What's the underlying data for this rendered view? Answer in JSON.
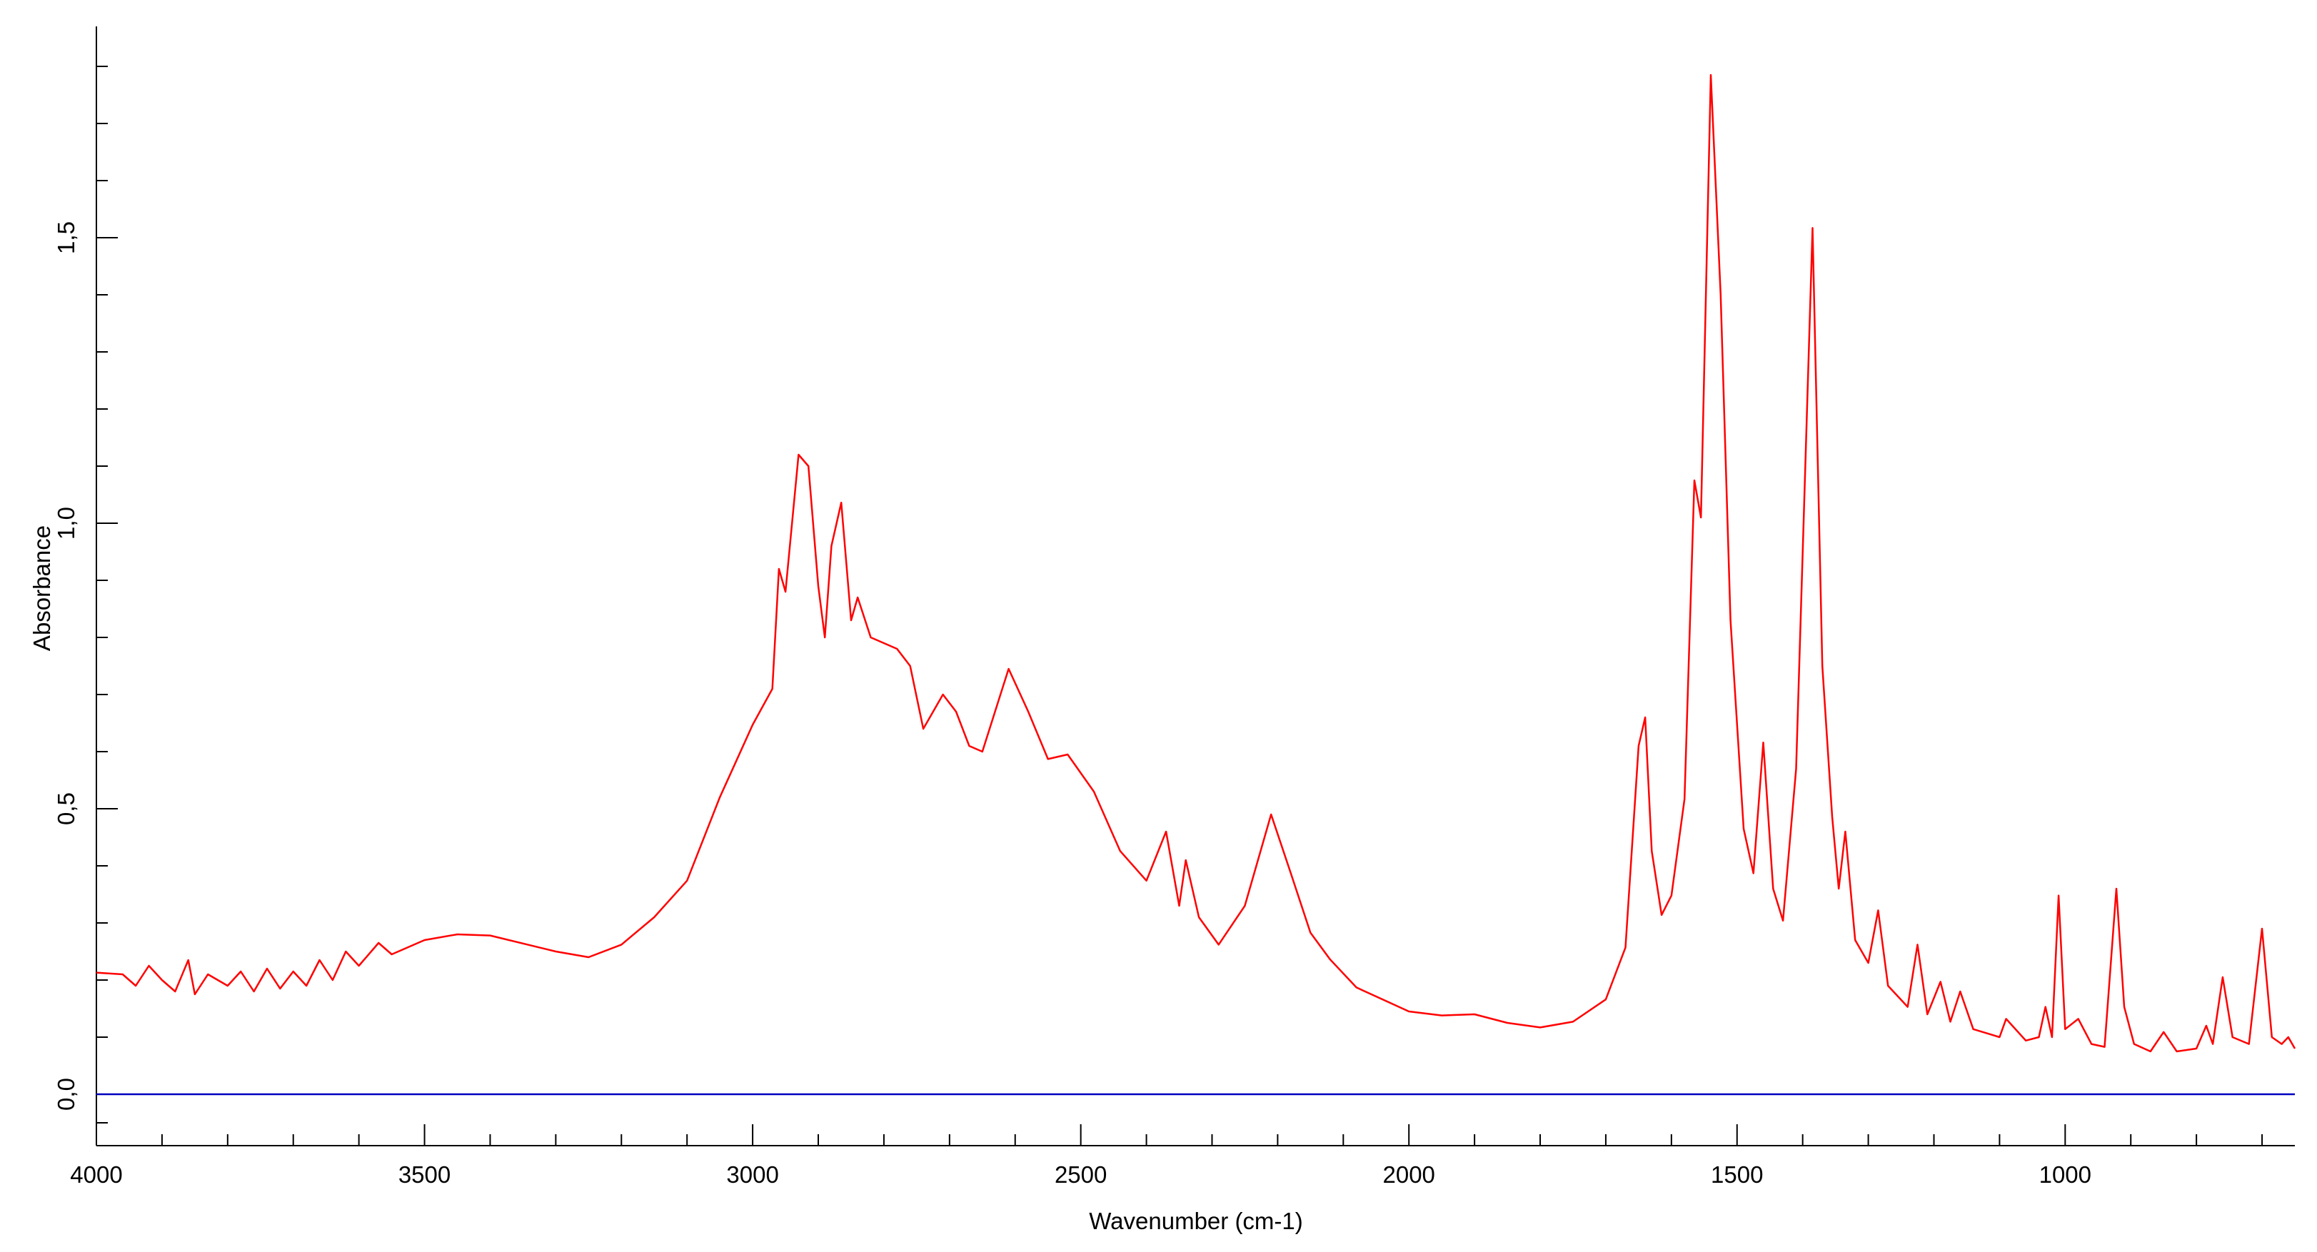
{
  "chart_data": {
    "type": "line",
    "xlabel": "Wavenumber (cm-1)",
    "ylabel": "Absorbance",
    "xlim": [
      4000,
      650
    ],
    "ylim": [
      -0.09,
      1.87
    ],
    "xticks": [
      4000,
      3500,
      3000,
      2500,
      2000,
      1500,
      1000
    ],
    "xminorticks": [
      3900,
      3800,
      3700,
      3600,
      3400,
      3300,
      3200,
      3100,
      2900,
      2800,
      2700,
      2600,
      2400,
      2300,
      2200,
      2100,
      1900,
      1800,
      1700,
      1600,
      1400,
      1300,
      1200,
      1100,
      900,
      800,
      700
    ],
    "yticks": [
      {
        "value": 0,
        "label": "0,0"
      },
      {
        "value": 0.5,
        "label": "0,5"
      },
      {
        "value": 1.0,
        "label": "1,0"
      },
      {
        "value": 1.5,
        "label": "1,5"
      }
    ],
    "yminorticks": [
      -0.05,
      0.1,
      0.2,
      0.3,
      0.4,
      0.6,
      0.7,
      0.8,
      0.9,
      1.1,
      1.2,
      1.3,
      1.4,
      1.6,
      1.7,
      1.8
    ],
    "series": [
      {
        "color": "#ff0000",
        "x": [
          4000,
          3960,
          3940,
          3920,
          3900,
          3880,
          3860,
          3850,
          3830,
          3800,
          3780,
          3760,
          3740,
          3720,
          3700,
          3680,
          3660,
          3640,
          3620,
          3600,
          3570,
          3550,
          3500,
          3450,
          3400,
          3300,
          3250,
          3200,
          3150,
          3100,
          3050,
          3000,
          2970,
          2960,
          2950,
          2930,
          2915,
          2900,
          2890,
          2880,
          2865,
          2850,
          2840,
          2820,
          2780,
          2760,
          2740,
          2710,
          2690,
          2670,
          2650,
          2610,
          2580,
          2550,
          2520,
          2480,
          2440,
          2400,
          2370,
          2350,
          2340,
          2320,
          2290,
          2250,
          2210,
          2180,
          2150,
          2120,
          2080,
          2000,
          1950,
          1900,
          1850,
          1800,
          1750,
          1700,
          1670,
          1650,
          1640,
          1630,
          1615,
          1600,
          1580,
          1565,
          1555,
          1540,
          1525,
          1510,
          1490,
          1475,
          1460,
          1445,
          1430,
          1410,
          1385,
          1370,
          1355,
          1345,
          1335,
          1320,
          1300,
          1285,
          1270,
          1240,
          1225,
          1210,
          1190,
          1175,
          1160,
          1140,
          1100,
          1090,
          1060,
          1040,
          1030,
          1020,
          1010,
          1000,
          980,
          960,
          940,
          922,
          910,
          895,
          870,
          850,
          830,
          800,
          785,
          775,
          760,
          745,
          720,
          700,
          685,
          670,
          660,
          650
        ],
        "values": [
          0.213,
          0.21,
          0.19,
          0.225,
          0.2,
          0.18,
          0.235,
          0.175,
          0.21,
          0.19,
          0.215,
          0.18,
          0.22,
          0.185,
          0.215,
          0.19,
          0.235,
          0.2,
          0.25,
          0.225,
          0.265,
          0.245,
          0.27,
          0.28,
          0.278,
          0.25,
          0.24,
          0.262,
          0.31,
          0.374,
          0.52,
          0.647,
          0.71,
          0.92,
          0.88,
          1.12,
          1.1,
          0.89,
          0.8,
          0.96,
          1.036,
          0.83,
          0.87,
          0.8,
          0.78,
          0.75,
          0.64,
          0.7,
          0.67,
          0.61,
          0.6,
          0.745,
          0.67,
          0.587,
          0.595,
          0.53,
          0.426,
          0.374,
          0.46,
          0.33,
          0.41,
          0.31,
          0.262,
          0.33,
          0.49,
          0.387,
          0.283,
          0.236,
          0.187,
          0.145,
          0.138,
          0.14,
          0.125,
          0.117,
          0.127,
          0.166,
          0.257,
          0.61,
          0.66,
          0.426,
          0.314,
          0.348,
          0.517,
          1.075,
          1.01,
          1.785,
          1.4,
          0.83,
          0.465,
          0.387,
          0.616,
          0.36,
          0.304,
          0.57,
          1.517,
          0.75,
          0.486,
          0.36,
          0.46,
          0.27,
          0.23,
          0.322,
          0.19,
          0.153,
          0.262,
          0.14,
          0.197,
          0.127,
          0.18,
          0.114,
          0.1,
          0.132,
          0.094,
          0.1,
          0.153,
          0.1,
          0.348,
          0.114,
          0.132,
          0.088,
          0.083,
          0.36,
          0.153,
          0.088,
          0.075,
          0.109,
          0.075,
          0.08,
          0.12,
          0.088,
          0.205,
          0.1,
          0.088,
          0.29,
          0.1,
          0.088,
          0.1,
          0.08
        ]
      },
      {
        "color": "#0000c0",
        "x": [
          4000,
          650
        ],
        "values": [
          0,
          0
        ]
      }
    ]
  }
}
